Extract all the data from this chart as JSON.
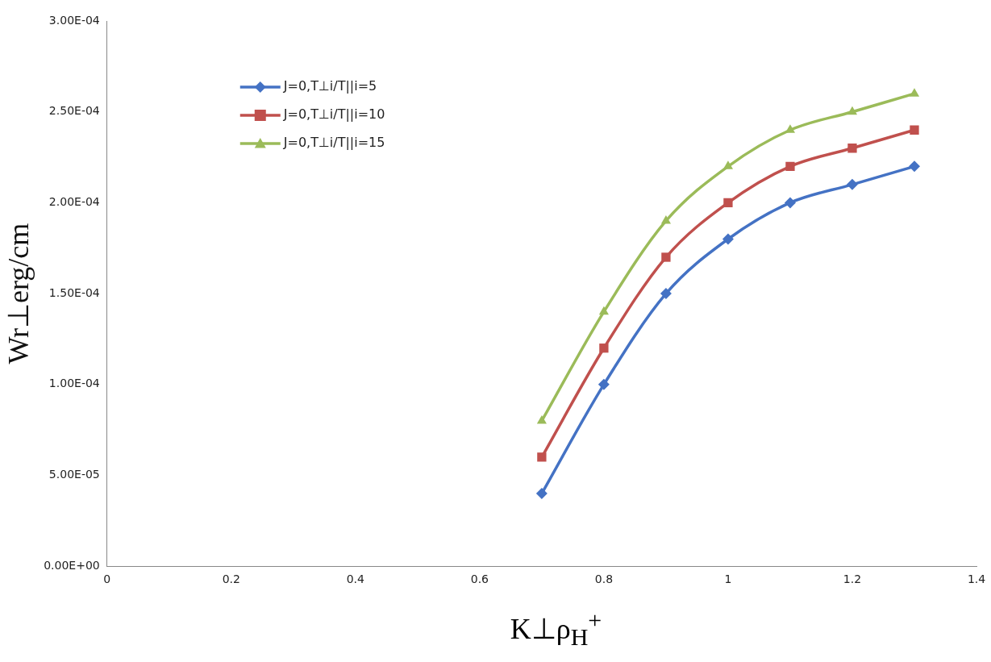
{
  "chart_data": {
    "type": "line",
    "xlabel": "K⊥ρ$_{H}$$^{+}$",
    "ylabel": "Wr⊥erg/cm",
    "x": [
      0.7,
      0.8,
      0.9,
      1,
      1.1,
      1.2,
      1.3
    ],
    "series": [
      {
        "name": "J=0,T⊥i/T||i=5",
        "color": "#4472c4",
        "marker": "diamond",
        "values": [
          4e-05,
          0.0001,
          0.00015,
          0.00018,
          0.0002,
          0.00021,
          0.00022
        ]
      },
      {
        "name": "J=0,T⊥i/T||i=10",
        "color": "#c0504d",
        "marker": "square",
        "values": [
          6e-05,
          0.00012,
          0.00017,
          0.0002,
          0.00022,
          0.00023,
          0.00024
        ]
      },
      {
        "name": "J=0,T⊥i/T||i=15",
        "color": "#9bbb59",
        "marker": "triangle",
        "values": [
          8e-05,
          0.00014,
          0.00019,
          0.00022,
          0.00024,
          0.00025,
          0.00026
        ]
      }
    ],
    "xlim": [
      0,
      1.4
    ],
    "xticks": [
      0,
      0.2,
      0.4,
      0.6,
      0.8,
      1,
      1.2,
      1.4
    ],
    "ylim": [
      0,
      0.0003
    ],
    "yticks": [
      {
        "value": 0,
        "label": "0.00E+00"
      },
      {
        "value": 5e-05,
        "label": "5.00E-05"
      },
      {
        "value": 0.0001,
        "label": "1.00E-04"
      },
      {
        "value": 0.00015,
        "label": "1.50E-04"
      },
      {
        "value": 0.0002,
        "label": "2.00E-04"
      },
      {
        "value": 0.00025,
        "label": "2.50E-04"
      },
      {
        "value": 0.0003,
        "label": "3.00E-04"
      }
    ],
    "grid": false,
    "legend": "top left",
    "line_style": "solid"
  }
}
